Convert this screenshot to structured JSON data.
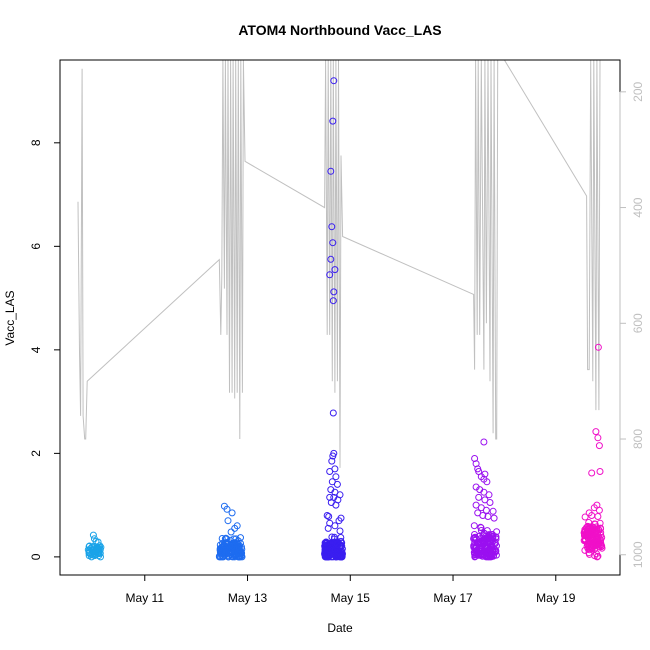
{
  "chart_data": {
    "type": "scatter",
    "title": "ATOM4 Northbound Vacc_LAS",
    "xlabel": "Date",
    "ylabel": "Vacc_LAS",
    "x_ticks": [
      "May 11",
      "May 13",
      "May 15",
      "May 17",
      "May 19"
    ],
    "x_tick_days": [
      11,
      13,
      15,
      17,
      19
    ],
    "xlim_days": [
      9.35,
      20.25
    ],
    "ylim": [
      -0.35,
      9.6
    ],
    "y_ticks": [
      0,
      2,
      4,
      6,
      8
    ],
    "y2lim": [
      1035,
      145
    ],
    "y2_ticks": [
      200,
      400,
      600,
      800,
      1000
    ],
    "y2_reversed": true,
    "grid": false,
    "colors": {
      "may10": "#1aa3e8",
      "may12": "#1e6cf0",
      "may14": "#3a1ef0",
      "may17": "#9a10f0",
      "may19": "#f010c8",
      "line": "#c0c0c0",
      "axis": "#000000",
      "right_axis": "#bfbfbf"
    },
    "series": [
      {
        "day": 10,
        "start": 9.9,
        "end": 10.15,
        "n": 45,
        "base": 0.12,
        "spread": 0.1,
        "color_key": "may10",
        "extra_points": [
          [
            10.0,
            0.42
          ],
          [
            10.02,
            0.35
          ],
          [
            10.05,
            0.3
          ]
        ]
      },
      {
        "day": 12,
        "start": 12.45,
        "end": 12.9,
        "n": 130,
        "base": 0.14,
        "spread": 0.14,
        "color_key": "may12",
        "extra_points": [
          [
            12.55,
            0.98
          ],
          [
            12.6,
            0.92
          ],
          [
            12.7,
            0.85
          ],
          [
            12.62,
            0.7
          ],
          [
            12.75,
            0.55
          ],
          [
            12.68,
            0.48
          ],
          [
            12.8,
            0.6
          ]
        ]
      },
      {
        "day": 14,
        "start": 14.5,
        "end": 14.85,
        "n": 160,
        "base": 0.12,
        "spread": 0.16,
        "color_key": "may14",
        "extra_points": [
          [
            14.68,
            9.2
          ],
          [
            14.66,
            8.42
          ],
          [
            14.62,
            7.45
          ],
          [
            14.64,
            6.38
          ],
          [
            14.66,
            6.07
          ],
          [
            14.62,
            5.75
          ],
          [
            14.7,
            5.55
          ],
          [
            14.6,
            5.45
          ],
          [
            14.68,
            5.12
          ],
          [
            14.67,
            4.95
          ],
          [
            14.67,
            2.78
          ],
          [
            14.68,
            2.0
          ],
          [
            14.66,
            1.95
          ],
          [
            14.64,
            1.85
          ],
          [
            14.7,
            1.7
          ],
          [
            14.6,
            1.65
          ],
          [
            14.72,
            1.55
          ],
          [
            14.65,
            1.45
          ],
          [
            14.75,
            1.4
          ],
          [
            14.62,
            1.3
          ],
          [
            14.7,
            1.25
          ],
          [
            14.8,
            1.2
          ],
          [
            14.6,
            1.15
          ],
          [
            14.68,
            1.15
          ],
          [
            14.76,
            1.1
          ],
          [
            14.63,
            1.05
          ],
          [
            14.72,
            1.0
          ],
          [
            14.55,
            0.8
          ],
          [
            14.58,
            0.78
          ],
          [
            14.82,
            0.75
          ],
          [
            14.78,
            0.7
          ],
          [
            14.6,
            0.65
          ],
          [
            14.7,
            0.6
          ],
          [
            14.57,
            0.55
          ],
          [
            14.8,
            0.5
          ]
        ]
      },
      {
        "day": 17,
        "start": 17.4,
        "end": 17.85,
        "n": 150,
        "base": 0.22,
        "spread": 0.22,
        "color_key": "may17",
        "extra_points": [
          [
            17.6,
            2.22
          ],
          [
            17.42,
            1.9
          ],
          [
            17.45,
            1.8
          ],
          [
            17.48,
            1.7
          ],
          [
            17.5,
            1.65
          ],
          [
            17.62,
            1.6
          ],
          [
            17.55,
            1.55
          ],
          [
            17.6,
            1.5
          ],
          [
            17.66,
            1.45
          ],
          [
            17.45,
            1.35
          ],
          [
            17.52,
            1.3
          ],
          [
            17.6,
            1.25
          ],
          [
            17.7,
            1.2
          ],
          [
            17.5,
            1.15
          ],
          [
            17.62,
            1.1
          ],
          [
            17.72,
            1.05
          ],
          [
            17.45,
            1.0
          ],
          [
            17.55,
            0.95
          ],
          [
            17.65,
            0.9
          ],
          [
            17.78,
            0.88
          ],
          [
            17.48,
            0.85
          ],
          [
            17.58,
            0.8
          ],
          [
            17.68,
            0.78
          ],
          [
            17.8,
            0.75
          ]
        ]
      },
      {
        "day": 19,
        "start": 19.55,
        "end": 19.9,
        "n": 140,
        "base": 0.38,
        "spread": 0.22,
        "color_key": "may19",
        "extra_points": [
          [
            19.83,
            4.05
          ],
          [
            19.78,
            2.42
          ],
          [
            19.82,
            2.3
          ],
          [
            19.85,
            2.15
          ],
          [
            19.7,
            1.62
          ],
          [
            19.86,
            1.65
          ],
          [
            19.8,
            1.0
          ],
          [
            19.75,
            0.95
          ],
          [
            19.85,
            0.9
          ],
          [
            19.65,
            0.85
          ],
          [
            19.7,
            0.8
          ],
          [
            19.82,
            0.78
          ]
        ]
      }
    ],
    "line_series": {
      "name": "",
      "axis": "right",
      "points": [
        [
          9.7,
          390
        ],
        [
          9.73,
          650
        ],
        [
          9.75,
          760
        ],
        [
          9.78,
          160
        ],
        [
          9.8,
          760
        ],
        [
          9.83,
          800
        ],
        [
          9.85,
          800
        ],
        [
          9.88,
          700
        ],
        [
          12.45,
          490
        ],
        [
          12.48,
          620
        ],
        [
          12.5,
          520
        ],
        [
          12.52,
          145
        ],
        [
          12.55,
          540
        ],
        [
          12.57,
          145
        ],
        [
          12.6,
          620
        ],
        [
          12.62,
          145
        ],
        [
          12.65,
          720
        ],
        [
          12.67,
          145
        ],
        [
          12.7,
          720
        ],
        [
          12.72,
          145
        ],
        [
          12.75,
          730
        ],
        [
          12.77,
          145
        ],
        [
          12.8,
          720
        ],
        [
          12.82,
          145
        ],
        [
          12.85,
          800
        ],
        [
          12.87,
          145
        ],
        [
          12.9,
          720
        ],
        [
          12.92,
          145
        ],
        [
          12.95,
          320
        ],
        [
          14.5,
          400
        ],
        [
          14.52,
          145
        ],
        [
          14.55,
          620
        ],
        [
          14.57,
          145
        ],
        [
          14.6,
          620
        ],
        [
          14.62,
          145
        ],
        [
          14.65,
          700
        ],
        [
          14.67,
          145
        ],
        [
          14.7,
          720
        ],
        [
          14.72,
          145
        ],
        [
          14.75,
          700
        ],
        [
          14.77,
          145
        ],
        [
          14.8,
          850
        ],
        [
          14.82,
          310
        ],
        [
          14.85,
          450
        ],
        [
          17.4,
          550
        ],
        [
          17.42,
          680
        ],
        [
          17.44,
          145
        ],
        [
          17.47,
          620
        ],
        [
          17.49,
          145
        ],
        [
          17.52,
          620
        ],
        [
          17.55,
          145
        ],
        [
          17.6,
          680
        ],
        [
          17.62,
          145
        ],
        [
          17.65,
          600
        ],
        [
          17.68,
          145
        ],
        [
          17.72,
          700
        ],
        [
          17.74,
          145
        ],
        [
          17.78,
          790
        ],
        [
          17.8,
          145
        ],
        [
          17.83,
          800
        ],
        [
          17.85,
          800
        ],
        [
          17.87,
          145
        ],
        [
          18.0,
          145
        ],
        [
          19.6,
          380
        ],
        [
          19.62,
          680
        ],
        [
          19.65,
          680
        ],
        [
          19.68,
          145
        ],
        [
          19.72,
          700
        ],
        [
          19.74,
          145
        ],
        [
          19.78,
          750
        ],
        [
          19.8,
          145
        ],
        [
          19.84,
          750
        ],
        [
          19.86,
          145
        ],
        [
          19.9,
          145
        ]
      ]
    }
  }
}
